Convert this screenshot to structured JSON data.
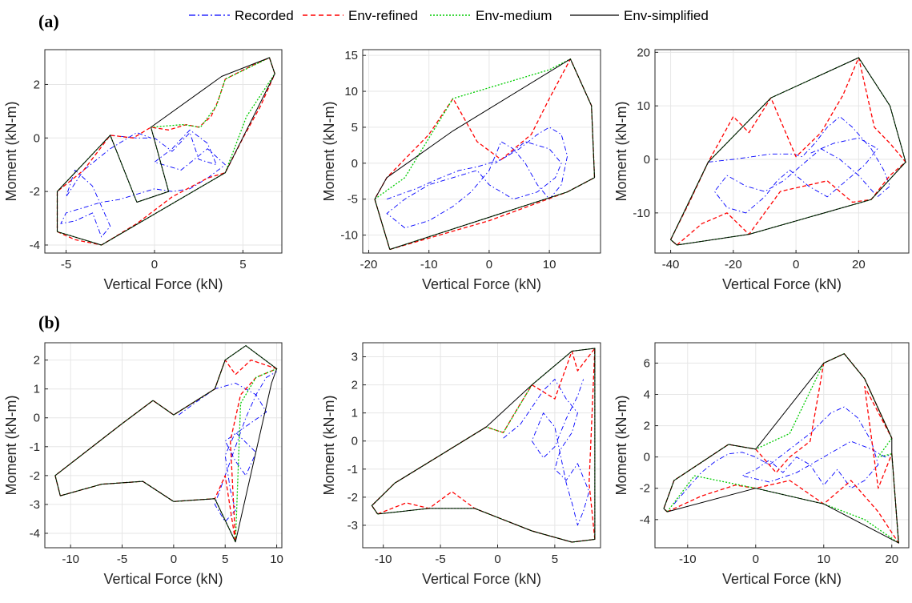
{
  "panel_labels": [
    "(a)",
    "(b)"
  ],
  "legend": [
    {
      "label": "Recorded",
      "color": "#0000ff",
      "style": "dashdot"
    },
    {
      "label": "Env-refined",
      "color": "#ff0000",
      "style": "dashed"
    },
    {
      "label": "Env-medium",
      "color": "#00cc00",
      "style": "dotted"
    },
    {
      "label": "Env-simplified",
      "color": "#000000",
      "style": "solid"
    }
  ],
  "chart_data": [
    {
      "type": "line",
      "panel": "(a)",
      "xlabel": "Vertical Force (kN)",
      "ylabel": "Moment (kN-m)",
      "xlim": [
        -6.2,
        7.2
      ],
      "ylim": [
        -4.3,
        3.3
      ],
      "xticks": [
        -5,
        0,
        5
      ],
      "yticks": [
        -4,
        -2,
        0,
        2
      ],
      "grid": true,
      "envelope_simplified": {
        "x": [
          -5.5,
          -3,
          4,
          6.8,
          6.5,
          3.8,
          -0.2,
          0.8,
          -1,
          -2.5,
          -5.5,
          -5.5
        ],
        "y": [
          -3.5,
          -4,
          -1.3,
          2.4,
          3,
          2.3,
          0.4,
          -2,
          -2.4,
          0.1,
          -2,
          -3.5
        ]
      },
      "envelope_medium": {
        "x": [
          -5.5,
          -3,
          4,
          5.2,
          6.8,
          6.5,
          4,
          3.5,
          2.6,
          1.6,
          -0.2,
          0.8,
          -1,
          -2.5,
          -5.5,
          -5.5
        ],
        "y": [
          -3.5,
          -4,
          -1.3,
          0.8,
          2.4,
          3,
          2.2,
          1.2,
          0.4,
          0.5,
          0.4,
          -2,
          -2.4,
          0.1,
          -2,
          -3.5
        ]
      },
      "envelope_refined": {
        "x": [
          -5.5,
          -4.5,
          -3,
          -1,
          1,
          3,
          4,
          5,
          6,
          6.8,
          6.5,
          5.5,
          4,
          3.6,
          3.2,
          2.5,
          1.8,
          0.8,
          -0.2,
          -1.2,
          -2.5,
          -4,
          -5.5,
          -5.5
        ],
        "y": [
          -3.5,
          -3.8,
          -4,
          -3.2,
          -2.2,
          -1.5,
          -1.3,
          0,
          1.2,
          2.4,
          3,
          2.7,
          2.2,
          1.4,
          0.8,
          0.4,
          0.5,
          0.3,
          0.4,
          0,
          0.1,
          -1.2,
          -2,
          -3.5
        ]
      },
      "recorded": {
        "x": [
          -2.5,
          -1,
          0,
          1,
          2,
          2.5,
          3.5,
          3,
          2,
          1,
          0,
          1.5,
          3,
          4,
          3,
          2,
          1,
          0,
          -1,
          -2,
          -3,
          -4,
          -5,
          -5.3,
          -4.5,
          -3.5,
          -3,
          -2.5,
          -3.5,
          -4.5,
          -5,
          -4,
          -2.5,
          -1,
          -0.2
        ],
        "y": [
          0.1,
          0,
          0,
          -0.5,
          0.2,
          -0.8,
          -1.0,
          -0.2,
          0.3,
          -0.4,
          -0.9,
          -1.2,
          -0.4,
          -1.0,
          -1.5,
          -1.9,
          -2.0,
          -1.9,
          -2.1,
          -2.3,
          -2.4,
          -2.6,
          -2.8,
          -3.2,
          -3.1,
          -2.8,
          -3.7,
          -3.3,
          -1.8,
          -1.2,
          -2.2,
          -1.2,
          -0.4,
          0.2,
          0.0
        ]
      }
    },
    {
      "type": "line",
      "panel": "(a)",
      "xlabel": "Vertical Force (kN)",
      "ylabel": "Moment (kN-m)",
      "xlim": [
        -21,
        18.5
      ],
      "ylim": [
        -12.5,
        15.8
      ],
      "xticks": [
        -20,
        -10,
        0,
        10
      ],
      "yticks": [
        -10,
        -5,
        0,
        5,
        10,
        15
      ],
      "grid": true,
      "envelope_simplified": {
        "x": [
          -16.5,
          13,
          17.5,
          17,
          13.5,
          -6,
          -17,
          -19,
          -16.5
        ],
        "y": [
          -12,
          -4,
          -2,
          8,
          14.5,
          4.5,
          -2,
          -5,
          -12
        ]
      },
      "envelope_medium": {
        "x": [
          -16.5,
          13,
          17.5,
          17,
          13.5,
          10,
          -6,
          -14,
          -19,
          -16.5
        ],
        "y": [
          -12,
          -4,
          -2,
          8,
          14.5,
          13,
          9,
          -2,
          -5,
          -12
        ]
      },
      "envelope_refined": {
        "x": [
          -16.5,
          0,
          13,
          17.5,
          17,
          13.5,
          10,
          7,
          2,
          -2,
          -6,
          -10,
          -17,
          -19,
          -16.5
        ],
        "y": [
          -12,
          -8,
          -4,
          -2,
          8,
          14.5,
          9,
          4,
          0.5,
          3,
          9,
          4,
          -2,
          -5,
          -12
        ]
      },
      "recorded": {
        "x": [
          -17,
          -12,
          -8,
          -5,
          -2,
          0,
          2,
          5,
          8,
          10,
          12,
          13,
          12,
          10,
          8,
          6,
          4,
          2,
          0,
          -3,
          -6,
          -10,
          -14,
          -17,
          -14,
          -10,
          -6,
          -2,
          0,
          4,
          8,
          11,
          12,
          10,
          6,
          3,
          1
        ],
        "y": [
          -5,
          -3.5,
          -2,
          -1,
          -0.5,
          0,
          0.5,
          2,
          4,
          5,
          4,
          1,
          -3,
          -5,
          -3,
          0,
          2,
          3,
          -1,
          -4,
          -6,
          -8,
          -9,
          -7,
          -5,
          -3,
          -2,
          -1,
          -3,
          -5,
          -4,
          -2,
          0,
          2,
          3,
          1,
          0
        ]
      }
    },
    {
      "type": "line",
      "panel": "(a)",
      "xlabel": "Vertical Force (kN)",
      "ylabel": "Moment (kN-m)",
      "xlim": [
        -45,
        36
      ],
      "ylim": [
        -17.5,
        20.5
      ],
      "xticks": [
        -40,
        -20,
        0,
        20
      ],
      "yticks": [
        -10,
        0,
        10,
        20
      ],
      "grid": true,
      "envelope_simplified": {
        "x": [
          -38,
          -15,
          24,
          35,
          30,
          20,
          -8,
          -28,
          -40,
          -38
        ],
        "y": [
          -16,
          -14,
          -7.5,
          -0.5,
          10,
          19,
          11.5,
          -0.5,
          -15,
          -16
        ]
      },
      "envelope_medium": {
        "x": [
          -38,
          -15,
          24,
          35,
          30,
          20,
          -8,
          -28,
          -40,
          -38
        ],
        "y": [
          -16,
          -14,
          -7.5,
          -0.5,
          10,
          19,
          11.5,
          -0.5,
          -15,
          -16
        ]
      },
      "envelope_refined": {
        "x": [
          -38,
          -30,
          -22,
          -15,
          -5,
          10,
          18,
          24,
          30,
          35,
          30,
          25,
          20,
          15,
          8,
          0,
          -8,
          -15,
          -20,
          -28,
          -34,
          -40,
          -38
        ],
        "y": [
          -16,
          -12,
          -10,
          -14,
          -6,
          -4,
          -8,
          -7.5,
          -3,
          -0.5,
          3,
          6,
          19,
          12,
          5,
          0.5,
          11.5,
          5,
          8,
          -0.5,
          -8,
          -15,
          -16
        ]
      },
      "recorded": {
        "x": [
          -28,
          -20,
          -14,
          -8,
          -4,
          -1,
          2,
          6,
          10,
          14,
          18,
          24,
          28,
          30,
          26,
          20,
          14,
          8,
          2,
          -4,
          -10,
          -16,
          -22,
          -26,
          -22,
          -16,
          -10,
          -6,
          -2,
          4,
          10,
          16,
          22,
          26,
          20,
          12,
          4
        ],
        "y": [
          -0.5,
          0,
          0.5,
          1,
          1,
          1,
          0.5,
          3,
          6,
          8,
          6,
          2,
          -2,
          -5,
          -7,
          -3,
          0,
          2,
          -1,
          -4,
          -6,
          -5,
          -3,
          -6,
          -9,
          -10,
          -7,
          -4,
          -2,
          -5,
          -7,
          -4,
          -1,
          2,
          4,
          3,
          1
        ]
      }
    },
    {
      "type": "line",
      "panel": "(b)",
      "xlabel": "Vertical Force (kN)",
      "ylabel": "Moment (kN-m)",
      "xlim": [
        -12.5,
        10.5
      ],
      "ylim": [
        -4.5,
        2.6
      ],
      "xticks": [
        -10,
        -5,
        0,
        5,
        10
      ],
      "yticks": [
        -4,
        -3,
        -2,
        -1,
        0,
        1,
        2
      ],
      "grid": true,
      "envelope_simplified": {
        "x": [
          -11,
          -7,
          -3,
          0,
          4,
          6,
          9.5,
          10,
          7,
          5,
          4,
          0,
          -2,
          -5,
          -11.5,
          -11
        ],
        "y": [
          -2.7,
          -2.3,
          -2.2,
          -2.9,
          -2.8,
          -4.3,
          1.2,
          1.7,
          2.5,
          2.0,
          1.0,
          0.1,
          0.6,
          -0.2,
          -2.0,
          -2.7
        ]
      },
      "envelope_medium": {
        "x": [
          -11,
          -7,
          -3,
          0,
          4,
          6,
          6.5,
          8,
          10,
          7,
          5,
          4,
          0,
          -2,
          -5,
          -11.5,
          -11
        ],
        "y": [
          -2.7,
          -2.3,
          -2.2,
          -2.9,
          -2.8,
          -4.3,
          0.5,
          1.4,
          1.7,
          2.5,
          2.0,
          1.0,
          0.1,
          0.6,
          -0.2,
          -2.0,
          -2.7
        ]
      },
      "envelope_refined": {
        "x": [
          -11,
          -7,
          -3,
          0,
          4,
          5,
          6,
          5.5,
          6.5,
          8,
          10,
          7.5,
          6,
          5,
          4,
          0,
          -2,
          -5,
          -11.5,
          -11
        ],
        "y": [
          -2.7,
          -2.3,
          -2.2,
          -2.9,
          -2.8,
          -2.0,
          -4.3,
          -0.8,
          0.8,
          1.4,
          1.7,
          2.0,
          1.5,
          2.0,
          1.0,
          0.1,
          0.6,
          -0.2,
          -2.0,
          -2.7
        ]
      },
      "recorded": {
        "x": [
          0.5,
          2,
          4,
          6,
          8,
          9,
          7,
          5,
          6,
          7,
          8,
          6,
          5,
          5.5,
          6,
          5,
          4,
          5,
          6,
          7,
          8,
          9,
          10
        ],
        "y": [
          0.1,
          0.5,
          1.0,
          1.2,
          0.8,
          0.2,
          -0.3,
          -0.8,
          -1.5,
          -2.0,
          -1.2,
          -0.5,
          -1.3,
          -2.5,
          -3.2,
          -3.6,
          -3.0,
          -2.0,
          -1.0,
          0.0,
          0.8,
          1.4,
          1.6
        ]
      }
    },
    {
      "type": "line",
      "panel": "(b)",
      "xlabel": "Vertical Force (kN)",
      "ylabel": "Moment (kN-m)",
      "xlim": [
        -11.8,
        9
      ],
      "ylim": [
        -3.8,
        3.5
      ],
      "xticks": [
        -10,
        -5,
        0,
        5
      ],
      "yticks": [
        -3,
        -2,
        -1,
        0,
        1,
        2,
        3
      ],
      "grid": true,
      "envelope_simplified": {
        "x": [
          -10.5,
          -6,
          -2,
          3,
          6.5,
          8.5,
          8.5,
          6.5,
          3,
          -1,
          -5,
          -9,
          -11,
          -10.5
        ],
        "y": [
          -2.6,
          -2.4,
          -2.4,
          -3.2,
          -3.6,
          -3.5,
          3.3,
          3.2,
          2.0,
          0.5,
          -0.5,
          -1.5,
          -2.3,
          -2.6
        ]
      },
      "envelope_medium": {
        "x": [
          -10.5,
          -6,
          -2,
          3,
          6.5,
          8.5,
          8.5,
          6.5,
          3,
          0.5,
          -1,
          -5,
          -9,
          -11,
          -10.5
        ],
        "y": [
          -2.6,
          -2.4,
          -2.4,
          -3.2,
          -3.6,
          -3.5,
          3.3,
          3.2,
          2.0,
          0.3,
          0.5,
          -0.5,
          -1.5,
          -2.3,
          -2.6
        ]
      },
      "envelope_refined": {
        "x": [
          -10.5,
          -8,
          -6,
          -4,
          -2,
          3,
          6.5,
          8.5,
          8,
          8.5,
          7,
          6.5,
          5,
          3,
          1.5,
          0.5,
          -1,
          -5,
          -9,
          -11,
          -10.5
        ],
        "y": [
          -2.6,
          -2.2,
          -2.4,
          -1.8,
          -2.4,
          -3.2,
          -3.6,
          -3.5,
          -1.5,
          3.3,
          2.5,
          3.2,
          1.5,
          2.0,
          1.0,
          0.3,
          0.5,
          -0.5,
          -1.5,
          -2.3,
          -2.6
        ]
      },
      "recorded": {
        "x": [
          0.5,
          2,
          3,
          4,
          5,
          6,
          7,
          6.5,
          5.5,
          5,
          6,
          7,
          8,
          7.5,
          7,
          6.5,
          6,
          5.5,
          5,
          4,
          3,
          4,
          5,
          6,
          7,
          7.5
        ],
        "y": [
          0.1,
          0.6,
          1.2,
          1.8,
          2.2,
          1.5,
          1.0,
          0.3,
          -0.3,
          -1.0,
          -1.4,
          -0.8,
          -1.8,
          -2.5,
          -3.0,
          -2.2,
          -1.5,
          -0.5,
          0.5,
          1.0,
          0.0,
          -0.6,
          -0.2,
          0.8,
          1.6,
          2.2
        ]
      }
    },
    {
      "type": "line",
      "panel": "(b)",
      "xlabel": "Vertical Force (kN)",
      "ylabel": "Moment (kN-m)",
      "xlim": [
        -14.8,
        22.5
      ],
      "ylim": [
        -5.8,
        7.3
      ],
      "xticks": [
        -10,
        0,
        10,
        20
      ],
      "yticks": [
        -4,
        -2,
        0,
        2,
        4,
        6
      ],
      "grid": true,
      "envelope_simplified": {
        "x": [
          -13,
          0,
          10,
          21,
          20,
          20,
          16,
          13,
          10,
          0,
          -4,
          -12,
          -13.5,
          -13
        ],
        "y": [
          -3.5,
          -2,
          -3,
          -5.5,
          0.2,
          1.2,
          5,
          6.6,
          6.0,
          0.5,
          0.8,
          -1.5,
          -3.3,
          -3.5
        ]
      },
      "envelope_medium": {
        "x": [
          -13,
          -9,
          0,
          10,
          16,
          21,
          20,
          18,
          20,
          16,
          13,
          10,
          5,
          0,
          -4,
          -12,
          -13.5,
          -13
        ],
        "y": [
          -3.5,
          -1.2,
          -2,
          -3,
          -4,
          -5.5,
          0.2,
          0.0,
          1.2,
          5,
          6.6,
          6.0,
          1.5,
          0.5,
          0.8,
          -1.5,
          -3.3,
          -3.5
        ]
      },
      "envelope_refined": {
        "x": [
          -13,
          -8,
          -3,
          0,
          5,
          10,
          14,
          18,
          21,
          20,
          18,
          16,
          20,
          16,
          13,
          10,
          8,
          5,
          3,
          0,
          -4,
          -12,
          -13.5,
          -13
        ],
        "y": [
          -3.5,
          -2.5,
          -1.8,
          -2,
          -1.5,
          -3,
          -1.5,
          -3.5,
          -5.5,
          0.2,
          -2,
          4.5,
          1.2,
          5,
          6.6,
          6.0,
          1.0,
          0.0,
          -1.0,
          0.5,
          0.8,
          -1.5,
          -3.3,
          -3.5
        ]
      },
      "recorded": {
        "x": [
          -12,
          -10,
          -8,
          -6,
          -4,
          -2,
          0,
          2,
          5,
          8,
          11,
          13,
          15,
          17,
          18,
          16,
          14,
          12,
          10,
          8,
          6,
          4,
          2,
          0,
          -2,
          2,
          6,
          10,
          14,
          17,
          19,
          20
        ],
        "y": [
          -3,
          -2,
          -1,
          -0.3,
          0.2,
          0.3,
          0,
          -0.5,
          0.5,
          1.5,
          2.8,
          3.2,
          2.5,
          1.0,
          -0.5,
          -1.5,
          -2.0,
          -0.8,
          -1.8,
          -0.5,
          0.0,
          -1.0,
          -0.2,
          -0.8,
          -1.2,
          -1.6,
          -1.0,
          0.0,
          1.0,
          0.5,
          0.0,
          0.2
        ]
      }
    }
  ]
}
